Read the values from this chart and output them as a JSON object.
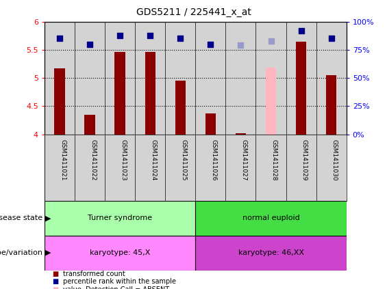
{
  "title": "GDS5211 / 225441_x_at",
  "samples": [
    "GSM1411021",
    "GSM1411022",
    "GSM1411023",
    "GSM1411024",
    "GSM1411025",
    "GSM1411026",
    "GSM1411027",
    "GSM1411028",
    "GSM1411029",
    "GSM1411030"
  ],
  "transformed_count": [
    5.17,
    4.35,
    5.46,
    5.46,
    4.95,
    4.37,
    4.02,
    null,
    5.65,
    5.05
  ],
  "absent_value": [
    null,
    null,
    null,
    null,
    null,
    null,
    null,
    5.19,
    null,
    null
  ],
  "percentile_rank": [
    85,
    80,
    88,
    88,
    85,
    80,
    null,
    null,
    92,
    85
  ],
  "absent_rank": [
    null,
    null,
    null,
    null,
    null,
    null,
    79,
    83,
    null,
    null
  ],
  "bar_color_normal": "#8B0000",
  "bar_color_absent": "#FFB6C1",
  "dot_color_normal": "#00008B",
  "dot_color_absent": "#9999CC",
  "ylim_left": [
    4.0,
    6.0
  ],
  "ylim_right": [
    0,
    100
  ],
  "yticks_left": [
    4.0,
    4.5,
    5.0,
    5.5,
    6.0
  ],
  "yticks_right": [
    0,
    25,
    50,
    75,
    100
  ],
  "ytick_labels_right": [
    "0%",
    "25%",
    "50%",
    "75%",
    "100%"
  ],
  "hlines": [
    4.5,
    5.0,
    5.5
  ],
  "disease_groups": [
    {
      "label": "Turner syndrome",
      "start": 0,
      "end": 5,
      "color": "#AAFFAA"
    },
    {
      "label": "normal euploid",
      "start": 5,
      "end": 10,
      "color": "#44DD44"
    }
  ],
  "genotype_groups": [
    {
      "label": "karyotype: 45,X",
      "start": 0,
      "end": 5,
      "color": "#FF88FF"
    },
    {
      "label": "karyotype: 46,XX",
      "start": 5,
      "end": 10,
      "color": "#CC44CC"
    }
  ],
  "disease_state_label": "disease state",
  "genotype_label": "genotype/variation",
  "bar_width": 0.35,
  "dot_size": 35,
  "background_color": "#D3D3D3"
}
